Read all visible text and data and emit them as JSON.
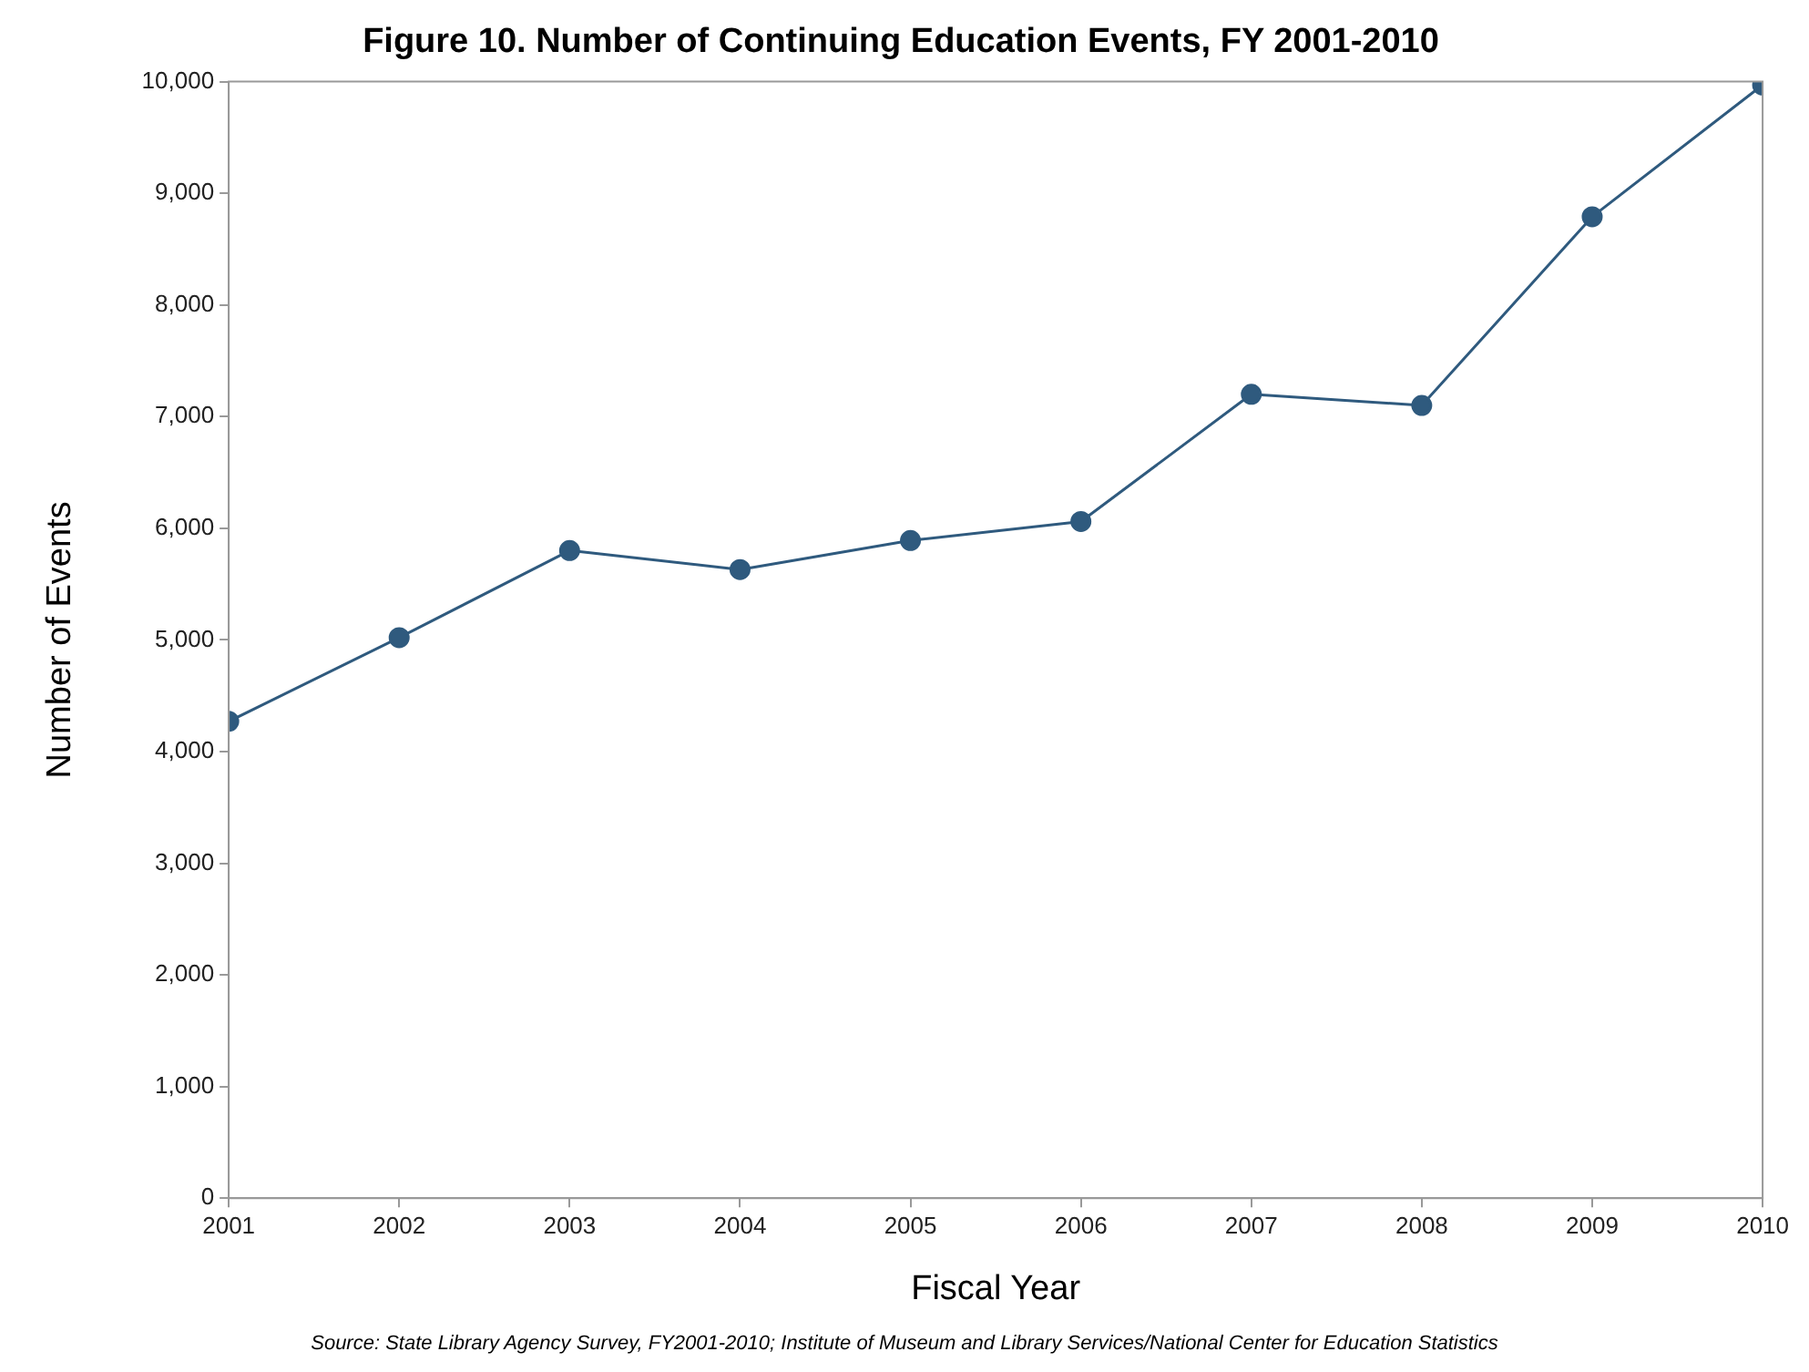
{
  "chart_data": {
    "type": "line",
    "title": "Figure 10. Number of Continuing Education Events, FY 2001-2010",
    "xlabel": "Fiscal Year",
    "ylabel": "Number of Events",
    "x": [
      2001,
      2002,
      2003,
      2004,
      2005,
      2006,
      2007,
      2008,
      2009,
      2010
    ],
    "series": [
      {
        "color": "#2f5a7e",
        "values": [
          4270,
          5020,
          5800,
          5630,
          5890,
          6060,
          7200,
          7100,
          8790,
          9970
        ]
      }
    ],
    "xlim": [
      2001,
      2010
    ],
    "xticks": [
      2001,
      2002,
      2003,
      2004,
      2005,
      2006,
      2007,
      2008,
      2009,
      2010
    ],
    "ylim": [
      0,
      10000
    ],
    "yticks": [
      0,
      {
        "value": 1000,
        "label": "1,000"
      },
      {
        "value": 2000,
        "label": "2,000"
      },
      {
        "value": 3000,
        "label": "3,000"
      },
      {
        "value": 4000,
        "label": "4,000"
      },
      {
        "value": 5000,
        "label": "5,000"
      },
      {
        "value": 6000,
        "label": "6,000"
      },
      {
        "value": 7000,
        "label": "7,000"
      },
      {
        "value": 8000,
        "label": "8,000"
      },
      {
        "value": 9000,
        "label": "9,000"
      },
      {
        "value": 10000,
        "label": "10,000"
      }
    ],
    "grid": false,
    "legend": false,
    "marker": "circle",
    "line_style": "solid",
    "annotations": [
      "Source: State Library Agency Survey, FY2001-2010; Institute of Museum and Library Services/National Center for Education Statistics"
    ]
  }
}
